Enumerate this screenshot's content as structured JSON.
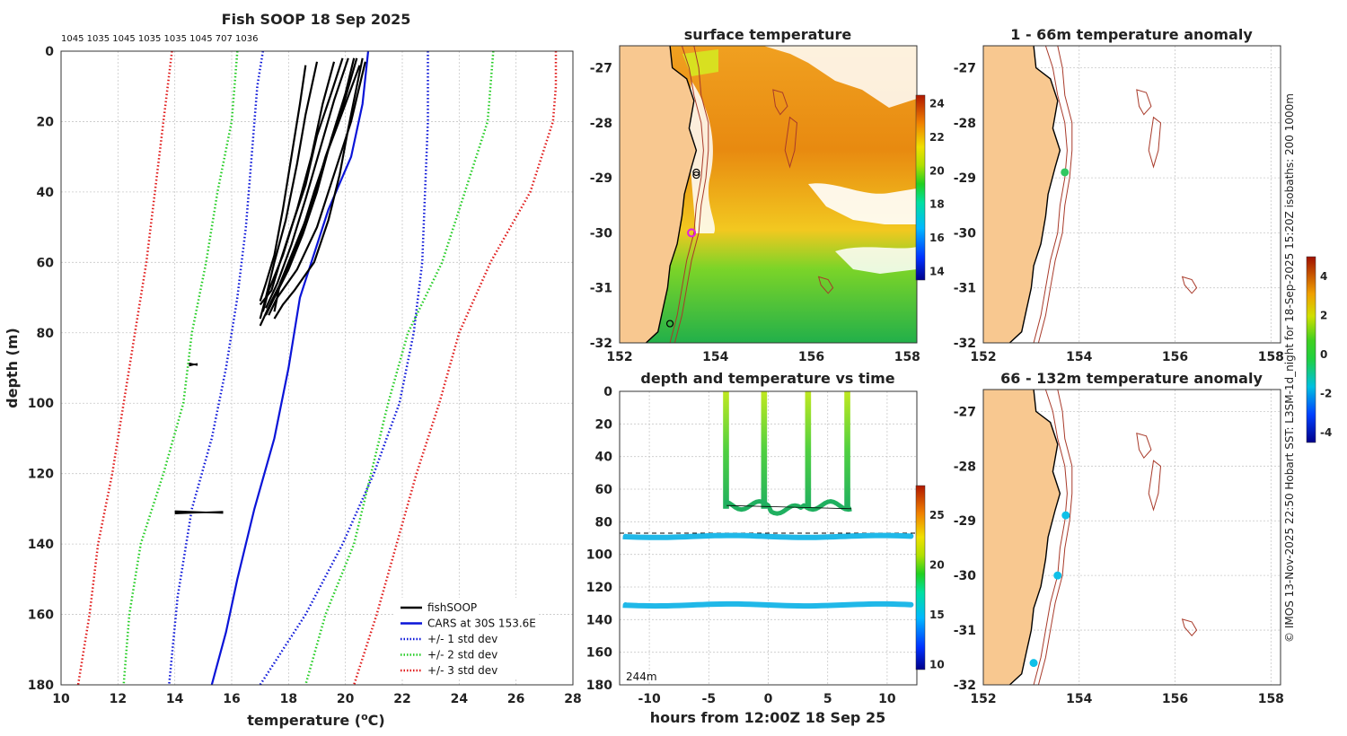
{
  "chart_data": [
    {
      "id": "profile",
      "type": "line",
      "title": "Fish SOOP 18 Sep 2025",
      "top_annotation": "1045 1035 1045 1035 1035 1045 707 1036",
      "xlabel": "temperature (°C)",
      "xlabel_parts": [
        "temperature (",
        "o",
        "C)"
      ],
      "ylabel": "depth (m)",
      "xlim": [
        10,
        28
      ],
      "ylim": [
        0,
        180
      ],
      "y_inverted": true,
      "xticks": [
        "10",
        "12",
        "14",
        "16",
        "18",
        "20",
        "22",
        "24",
        "26",
        "28"
      ],
      "yticks": [
        "0",
        "20",
        "40",
        "60",
        "80",
        "100",
        "120",
        "140",
        "160",
        "180"
      ],
      "legend": [
        {
          "label": "fishSOOP",
          "color": "#000000",
          "style": "solid"
        },
        {
          "label": "CARS at 30S 153.6E",
          "color": "#0a14d8",
          "style": "solid"
        },
        {
          "label": "+/- 1 std dev",
          "color": "#0a14d8",
          "style": "dotted"
        },
        {
          "label": "+/- 2 std dev",
          "color": "#22cc22",
          "style": "dotted"
        },
        {
          "label": "+/- 3 std dev",
          "color": "#e01a1a",
          "style": "dotted"
        }
      ],
      "cars_mean": [
        [
          20.8,
          0
        ],
        [
          20.6,
          15
        ],
        [
          20.2,
          30
        ],
        [
          19.4,
          45
        ],
        [
          18.8,
          60
        ],
        [
          18.4,
          70
        ],
        [
          18.0,
          90
        ],
        [
          17.5,
          110
        ],
        [
          16.8,
          130
        ],
        [
          16.2,
          150
        ],
        [
          15.8,
          165
        ],
        [
          15.3,
          180
        ]
      ],
      "std_offsets": [
        {
          "name": "1 std",
          "color": "#0a14d8",
          "lower": [
            [
              17.1,
              0
            ],
            [
              16.9,
              10
            ],
            [
              16.7,
              30
            ],
            [
              16.5,
              50
            ],
            [
              16.2,
              70
            ],
            [
              15.8,
              90
            ],
            [
              15.3,
              110
            ],
            [
              14.6,
              130
            ],
            [
              14.1,
              155
            ],
            [
              13.8,
              180
            ]
          ],
          "upper": [
            [
              22.9,
              0
            ],
            [
              22.9,
              10
            ],
            [
              22.9,
              20
            ],
            [
              22.8,
              40
            ],
            [
              22.7,
              60
            ],
            [
              22.4,
              80
            ],
            [
              21.9,
              100
            ],
            [
              21.0,
              120
            ],
            [
              19.9,
              140
            ],
            [
              18.6,
              160
            ],
            [
              17.0,
              180
            ]
          ]
        },
        {
          "name": "2 std",
          "color": "#22cc22",
          "lower": [
            [
              16.2,
              0
            ],
            [
              16.0,
              20
            ],
            [
              15.5,
              40
            ],
            [
              15.1,
              60
            ],
            [
              14.6,
              80
            ],
            [
              14.3,
              100
            ],
            [
              13.6,
              120
            ],
            [
              12.8,
              140
            ],
            [
              12.4,
              160
            ],
            [
              12.2,
              180
            ]
          ],
          "upper": [
            [
              25.2,
              0
            ],
            [
              25.1,
              10
            ],
            [
              25.0,
              20
            ],
            [
              24.2,
              40
            ],
            [
              23.4,
              60
            ],
            [
              22.2,
              80
            ],
            [
              21.5,
              100
            ],
            [
              20.9,
              120
            ],
            [
              20.3,
              140
            ],
            [
              19.3,
              160
            ],
            [
              18.6,
              180
            ]
          ]
        },
        {
          "name": "3 std",
          "color": "#e01a1a",
          "lower": [
            [
              13.9,
              0
            ],
            [
              13.6,
              20
            ],
            [
              13.3,
              40
            ],
            [
              13.0,
              60
            ],
            [
              12.6,
              80
            ],
            [
              12.2,
              100
            ],
            [
              11.8,
              120
            ],
            [
              11.3,
              140
            ],
            [
              11.0,
              160
            ],
            [
              10.6,
              180
            ]
          ],
          "upper": [
            [
              27.4,
              0
            ],
            [
              27.4,
              10
            ],
            [
              27.3,
              20
            ],
            [
              26.5,
              40
            ],
            [
              25.1,
              60
            ],
            [
              24.0,
              80
            ],
            [
              23.3,
              100
            ],
            [
              22.5,
              120
            ],
            [
              21.8,
              140
            ],
            [
              21.1,
              160
            ],
            [
              20.3,
              180
            ]
          ]
        }
      ],
      "fish_profiles": [
        [
          [
            20.6,
            2
          ],
          [
            20.4,
            10
          ],
          [
            20.1,
            22
          ],
          [
            19.8,
            35
          ],
          [
            19.4,
            48
          ],
          [
            18.9,
            60
          ],
          [
            18.2,
            68
          ],
          [
            17.8,
            72
          ],
          [
            17.5,
            76
          ]
        ],
        [
          [
            20.3,
            2
          ],
          [
            20.0,
            12
          ],
          [
            19.5,
            25
          ],
          [
            19.0,
            40
          ],
          [
            18.5,
            52
          ],
          [
            18.0,
            62
          ],
          [
            17.5,
            70
          ],
          [
            17.2,
            75
          ]
        ],
        [
          [
            20.1,
            2
          ],
          [
            19.6,
            14
          ],
          [
            19.1,
            28
          ],
          [
            18.6,
            42
          ],
          [
            18.1,
            55
          ],
          [
            17.6,
            66
          ],
          [
            17.2,
            73
          ]
        ],
        [
          [
            19.6,
            3
          ],
          [
            19.2,
            15
          ],
          [
            18.8,
            30
          ],
          [
            18.3,
            45
          ],
          [
            17.8,
            58
          ],
          [
            17.3,
            68
          ],
          [
            17.1,
            74
          ]
        ],
        [
          [
            19.0,
            3
          ],
          [
            18.6,
            18
          ],
          [
            18.3,
            32
          ],
          [
            17.9,
            48
          ],
          [
            17.5,
            60
          ],
          [
            17.2,
            70
          ],
          [
            17.0,
            76
          ]
        ],
        [
          [
            20.5,
            4
          ],
          [
            20.0,
            15
          ],
          [
            19.4,
            28
          ],
          [
            18.9,
            40
          ],
          [
            18.4,
            53
          ],
          [
            17.9,
            63
          ],
          [
            17.4,
            71
          ],
          [
            17.0,
            78
          ]
        ],
        [
          [
            20.7,
            3
          ],
          [
            20.2,
            20
          ],
          [
            19.6,
            35
          ],
          [
            19.0,
            50
          ],
          [
            18.3,
            62
          ],
          [
            17.6,
            70
          ],
          [
            17.3,
            75
          ]
        ],
        [
          [
            19.9,
            2
          ],
          [
            19.5,
            12
          ],
          [
            19.0,
            24
          ],
          [
            18.6,
            38
          ],
          [
            18.1,
            50
          ],
          [
            17.7,
            60
          ],
          [
            17.4,
            68
          ],
          [
            17.0,
            72
          ]
        ],
        [
          [
            18.6,
            4
          ],
          [
            18.4,
            15
          ],
          [
            18.1,
            30
          ],
          [
            17.8,
            45
          ],
          [
            17.5,
            58
          ],
          [
            17.2,
            66
          ],
          [
            17.0,
            71
          ]
        ],
        [
          [
            20.4,
            2
          ],
          [
            19.9,
            16
          ],
          [
            19.3,
            30
          ],
          [
            18.8,
            44
          ],
          [
            18.2,
            56
          ],
          [
            17.7,
            66
          ],
          [
            17.5,
            74
          ]
        ]
      ],
      "fish_clusters": [
        {
          "tmin": 14.5,
          "tmax": 14.8,
          "depth": 89
        },
        {
          "tmin": 14.0,
          "tmax": 15.7,
          "depth": 131
        }
      ]
    },
    {
      "id": "sst-map",
      "type": "heatmap",
      "title": "surface temperature",
      "xlim": [
        152,
        158.2
      ],
      "ylim": [
        -32,
        -26.6
      ],
      "xticks": [
        "152",
        "154",
        "156",
        "158"
      ],
      "yticks": [
        "-27",
        "-28",
        "-29",
        "-30",
        "-31",
        "-32"
      ],
      "colorbar": {
        "ticks": [
          "14",
          "16",
          "18",
          "20",
          "22",
          "24"
        ],
        "range": [
          13.5,
          24.5
        ]
      },
      "vessel_markers": [
        [
          153.6,
          -28.95
        ],
        [
          153.6,
          -28.9
        ],
        [
          153.05,
          -31.65
        ]
      ],
      "highlight_marker": [
        153.5,
        -30.0
      ]
    },
    {
      "id": "time-depth",
      "type": "scatter",
      "title": "depth and temperature vs time",
      "xlabel": "hours from 12:00Z 18 Sep 25",
      "xlim": [
        -12.5,
        12.5
      ],
      "ylim": [
        0,
        180
      ],
      "y_inverted": true,
      "xticks": [
        "-10",
        "-5",
        "0",
        "5",
        "10"
      ],
      "yticks": [
        "0",
        "20",
        "40",
        "60",
        "80",
        "100",
        "120",
        "140",
        "160",
        "180"
      ],
      "bottom_depth_label": "244m",
      "dashed_line_depth": 87,
      "dives": [
        [
          -3.8,
          -3.3
        ],
        [
          -0.6,
          -0.1
        ],
        [
          3.1,
          3.6
        ],
        [
          6.4,
          6.9
        ]
      ],
      "deep_series": [
        {
          "depth": 89,
          "temp": 14.8
        },
        {
          "depth": 131,
          "temp": 14.9
        }
      ],
      "colorbar": {
        "ticks": [
          "10",
          "15",
          "20",
          "25"
        ],
        "range": [
          9.5,
          28
        ]
      }
    },
    {
      "id": "anom-shallow",
      "type": "heatmap",
      "title": "1 - 66m temperature anomaly",
      "xlim": [
        152,
        158.2
      ],
      "ylim": [
        -32,
        -26.6
      ],
      "xticks": [
        "152",
        "154",
        "156",
        "158"
      ],
      "yticks": [
        "-27",
        "-28",
        "-29",
        "-30",
        "-31",
        "-32"
      ],
      "points": [
        {
          "lon": 153.7,
          "lat": -28.9,
          "value": 0.6
        }
      ]
    },
    {
      "id": "anom-deep",
      "type": "heatmap",
      "title": "66 - 132m temperature anomaly",
      "xlim": [
        152,
        158.2
      ],
      "ylim": [
        -32,
        -26.6
      ],
      "xticks": [
        "152",
        "154",
        "156",
        "158"
      ],
      "yticks": [
        "-27",
        "-28",
        "-29",
        "-30",
        "-31",
        "-32"
      ],
      "points": [
        {
          "lon": 153.72,
          "lat": -28.9,
          "value": -1.6
        },
        {
          "lon": 153.55,
          "lat": -30.0,
          "value": -1.3
        },
        {
          "lon": 153.05,
          "lat": -31.6,
          "value": -1.4
        }
      ],
      "colorbar": {
        "ticks": [
          "4",
          "2",
          "0",
          "-2",
          "-4"
        ],
        "range": [
          -4.5,
          5
        ]
      }
    }
  ],
  "credit": "© IMOS 13-Nov-2025 22:50 Hobart SST: L3SM-1d_night for 18-Sep-2025 15:20Z isobaths: 200  1000m"
}
